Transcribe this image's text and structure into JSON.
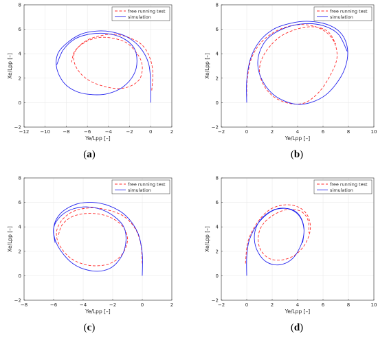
{
  "colors": {
    "test": "#ff2a2a",
    "sim": "#2222ee"
  },
  "chart_data": [
    {
      "type": "line",
      "panel": {
        "open": "(",
        "letter": "a",
        "close": ")"
      },
      "xlabel": "Ye/Lpp [–]",
      "ylabel": "Xe/Lpp [–]",
      "xlim": [
        -12,
        2
      ],
      "ylim": [
        -2,
        8
      ],
      "xticks": [
        "−12",
        "−10",
        "−8",
        "−6",
        "−4",
        "−2",
        "0",
        "2"
      ],
      "yticks": [
        "−2",
        "0",
        "2",
        "4",
        "6",
        "8"
      ],
      "grid": true,
      "legend_position": "top-right",
      "series": [
        {
          "name": "free running test",
          "style": "dashed",
          "color": "#ff2a2a",
          "x": [
            0.1,
            0.2,
            -0.1,
            -0.8,
            -2.0,
            -3.4,
            -4.6,
            -5.8,
            -6.8,
            -7.3,
            -7.0,
            -6.0,
            -4.5,
            -3.0,
            -1.8,
            -1.0,
            -0.8,
            -1.2,
            -2.3,
            -3.8,
            -5.1,
            -6.3,
            -7.2,
            -7.5
          ],
          "y": [
            1.0,
            2.5,
            3.7,
            4.7,
            5.3,
            5.6,
            5.5,
            5.2,
            4.6,
            3.8,
            2.8,
            1.9,
            1.35,
            1.15,
            1.4,
            2.0,
            3.0,
            3.9,
            4.9,
            5.3,
            5.3,
            4.9,
            4.2,
            3.3
          ]
        },
        {
          "name": "simulation",
          "style": "solid",
          "color": "#2222ee",
          "x": [
            0.0,
            0.0,
            -0.2,
            -1.0,
            -2.3,
            -3.8,
            -5.2,
            -6.6,
            -7.9,
            -8.8,
            -8.9,
            -8.2,
            -7.0,
            -5.5,
            -4.0,
            -2.6,
            -1.6,
            -1.3,
            -1.6,
            -2.7,
            -4.2,
            -5.8,
            -7.2,
            -8.3,
            -8.9
          ],
          "y": [
            0.0,
            1.5,
            3.2,
            4.5,
            5.4,
            5.8,
            5.85,
            5.6,
            4.9,
            4.0,
            2.8,
            1.6,
            0.9,
            0.65,
            0.75,
            1.3,
            2.3,
            3.4,
            4.5,
            5.3,
            5.65,
            5.6,
            5.2,
            4.3,
            3.1
          ]
        }
      ]
    },
    {
      "type": "line",
      "panel": {
        "open": "(",
        "letter": "b",
        "close": ")"
      },
      "xlabel": "Ye/Lpp [–]",
      "ylabel": "Xe/Lpp [–]",
      "xlim": [
        -2,
        10
      ],
      "ylim": [
        -2,
        8
      ],
      "xticks": [
        "−2",
        "0",
        "2",
        "4",
        "6",
        "8",
        "10"
      ],
      "yticks": [
        "−2",
        "0",
        "2",
        "4",
        "6",
        "8"
      ],
      "grid": true,
      "legend_position": "top-right",
      "series": [
        {
          "name": "free running test",
          "style": "dashed",
          "color": "#ff2a2a",
          "x": [
            0.0,
            0.05,
            0.4,
            1.2,
            2.4,
            3.8,
            5.1,
            6.2,
            6.9,
            7.1,
            6.7,
            5.8,
            4.6,
            3.3,
            2.1,
            1.3,
            1.0,
            1.4,
            2.5,
            3.9,
            5.3,
            6.4,
            7.0
          ],
          "y": [
            0.5,
            2.0,
            3.7,
            5.0,
            5.9,
            6.35,
            6.3,
            5.8,
            4.9,
            3.7,
            2.5,
            1.0,
            0.0,
            -0.05,
            0.5,
            1.5,
            2.7,
            4.0,
            5.3,
            6.0,
            6.2,
            5.8,
            4.8
          ]
        },
        {
          "name": "simulation",
          "style": "solid",
          "color": "#2222ee",
          "x": [
            0.0,
            0.0,
            0.3,
            1.0,
            2.1,
            3.5,
            4.9,
            6.3,
            7.3,
            7.85,
            7.9,
            7.4,
            6.3,
            5.0,
            3.7,
            2.3,
            1.4,
            0.9,
            1.0,
            1.7,
            3.0,
            4.5,
            6.0,
            7.2,
            7.9
          ],
          "y": [
            0.0,
            1.8,
            3.6,
            5.0,
            6.0,
            6.5,
            6.65,
            6.4,
            5.8,
            4.8,
            3.5,
            2.1,
            0.7,
            0.0,
            -0.1,
            0.5,
            1.5,
            2.8,
            4.1,
            5.3,
            6.1,
            6.45,
            6.3,
            5.6,
            4.2
          ]
        }
      ]
    },
    {
      "type": "line",
      "panel": {
        "open": "(",
        "letter": "c",
        "close": ")"
      },
      "xlabel": "Ye/Lpp [–]",
      "ylabel": "Xe/Lpp [–]",
      "xlim": [
        -8,
        2
      ],
      "ylim": [
        -2,
        8
      ],
      "xticks": [
        "−8",
        "−6",
        "−4",
        "−2",
        "0",
        "2"
      ],
      "yticks": [
        "−2",
        "0",
        "2",
        "4",
        "6",
        "8"
      ],
      "grid": true,
      "legend_position": "top-right",
      "series": [
        {
          "name": "free running test",
          "style": "dashed",
          "color": "#ff2a2a",
          "x": [
            0.0,
            -0.1,
            -0.5,
            -1.3,
            -2.4,
            -3.5,
            -4.6,
            -5.4,
            -5.8,
            -5.6,
            -4.8,
            -3.6,
            -2.3,
            -1.4,
            -1.0,
            -1.3,
            -2.2,
            -3.4,
            -4.6,
            -5.4,
            -5.7
          ],
          "y": [
            1.0,
            2.6,
            3.9,
            4.9,
            5.4,
            5.55,
            5.3,
            4.6,
            3.6,
            2.5,
            1.4,
            0.85,
            0.95,
            1.7,
            2.9,
            4.0,
            4.8,
            5.1,
            4.9,
            4.2,
            3.2
          ]
        },
        {
          "name": "simulation",
          "style": "solid",
          "color": "#2222ee",
          "x": [
            0.0,
            0.0,
            -0.3,
            -1.1,
            -2.2,
            -3.4,
            -4.6,
            -5.6,
            -6.0,
            -5.7,
            -4.7,
            -3.4,
            -2.2,
            -1.4,
            -1.1,
            -1.3,
            -2.2,
            -3.4,
            -4.6,
            -5.5,
            -6.0,
            -5.9
          ],
          "y": [
            0.0,
            1.8,
            3.5,
            4.9,
            5.7,
            6.0,
            5.8,
            5.0,
            3.8,
            2.4,
            1.0,
            0.4,
            0.6,
            1.6,
            2.9,
            4.1,
            5.1,
            5.6,
            5.5,
            4.9,
            3.9,
            2.7
          ]
        }
      ]
    },
    {
      "type": "line",
      "panel": {
        "open": "(",
        "letter": "d",
        "close": ")"
      },
      "xlabel": "Ye/Lpp [–]",
      "ylabel": "Xe/Lpp [–]",
      "xlim": [
        -2,
        10
      ],
      "ylim": [
        -2,
        8
      ],
      "xticks": [
        "−2",
        "0",
        "2",
        "4",
        "6",
        "8",
        "10"
      ],
      "yticks": [
        "−2",
        "0",
        "2",
        "4",
        "6",
        "8"
      ],
      "grid": true,
      "legend_position": "top-right",
      "series": [
        {
          "name": "free running test",
          "style": "dashed",
          "color": "#ff2a2a",
          "x": [
            -0.1,
            0.1,
            0.8,
            1.8,
            3.0,
            4.1,
            4.8,
            5.0,
            4.6,
            3.8,
            2.8,
            1.8,
            1.1,
            0.9,
            1.2,
            2.0,
            3.1,
            4.2,
            4.8,
            4.9
          ],
          "y": [
            1.0,
            2.8,
            4.3,
            5.4,
            5.8,
            5.6,
            4.9,
            3.8,
            2.6,
            1.7,
            1.3,
            1.4,
            2.1,
            3.1,
            4.1,
            4.9,
            5.4,
            5.3,
            4.6,
            3.5
          ]
        },
        {
          "name": "simulation",
          "style": "solid",
          "color": "#2222ee",
          "x": [
            0.0,
            0.0,
            0.2,
            0.9,
            2.0,
            3.2,
            4.1,
            4.5,
            4.3,
            3.6,
            2.6,
            1.6,
            0.9,
            0.6,
            0.8,
            1.5,
            2.5,
            3.5,
            4.2,
            4.5,
            4.4
          ],
          "y": [
            0.0,
            1.5,
            2.9,
            4.3,
            5.3,
            5.5,
            5.0,
            3.9,
            2.6,
            1.4,
            0.9,
            1.1,
            1.9,
            3.0,
            4.1,
            5.0,
            5.5,
            5.4,
            4.8,
            3.8,
            2.7
          ]
        }
      ]
    }
  ]
}
